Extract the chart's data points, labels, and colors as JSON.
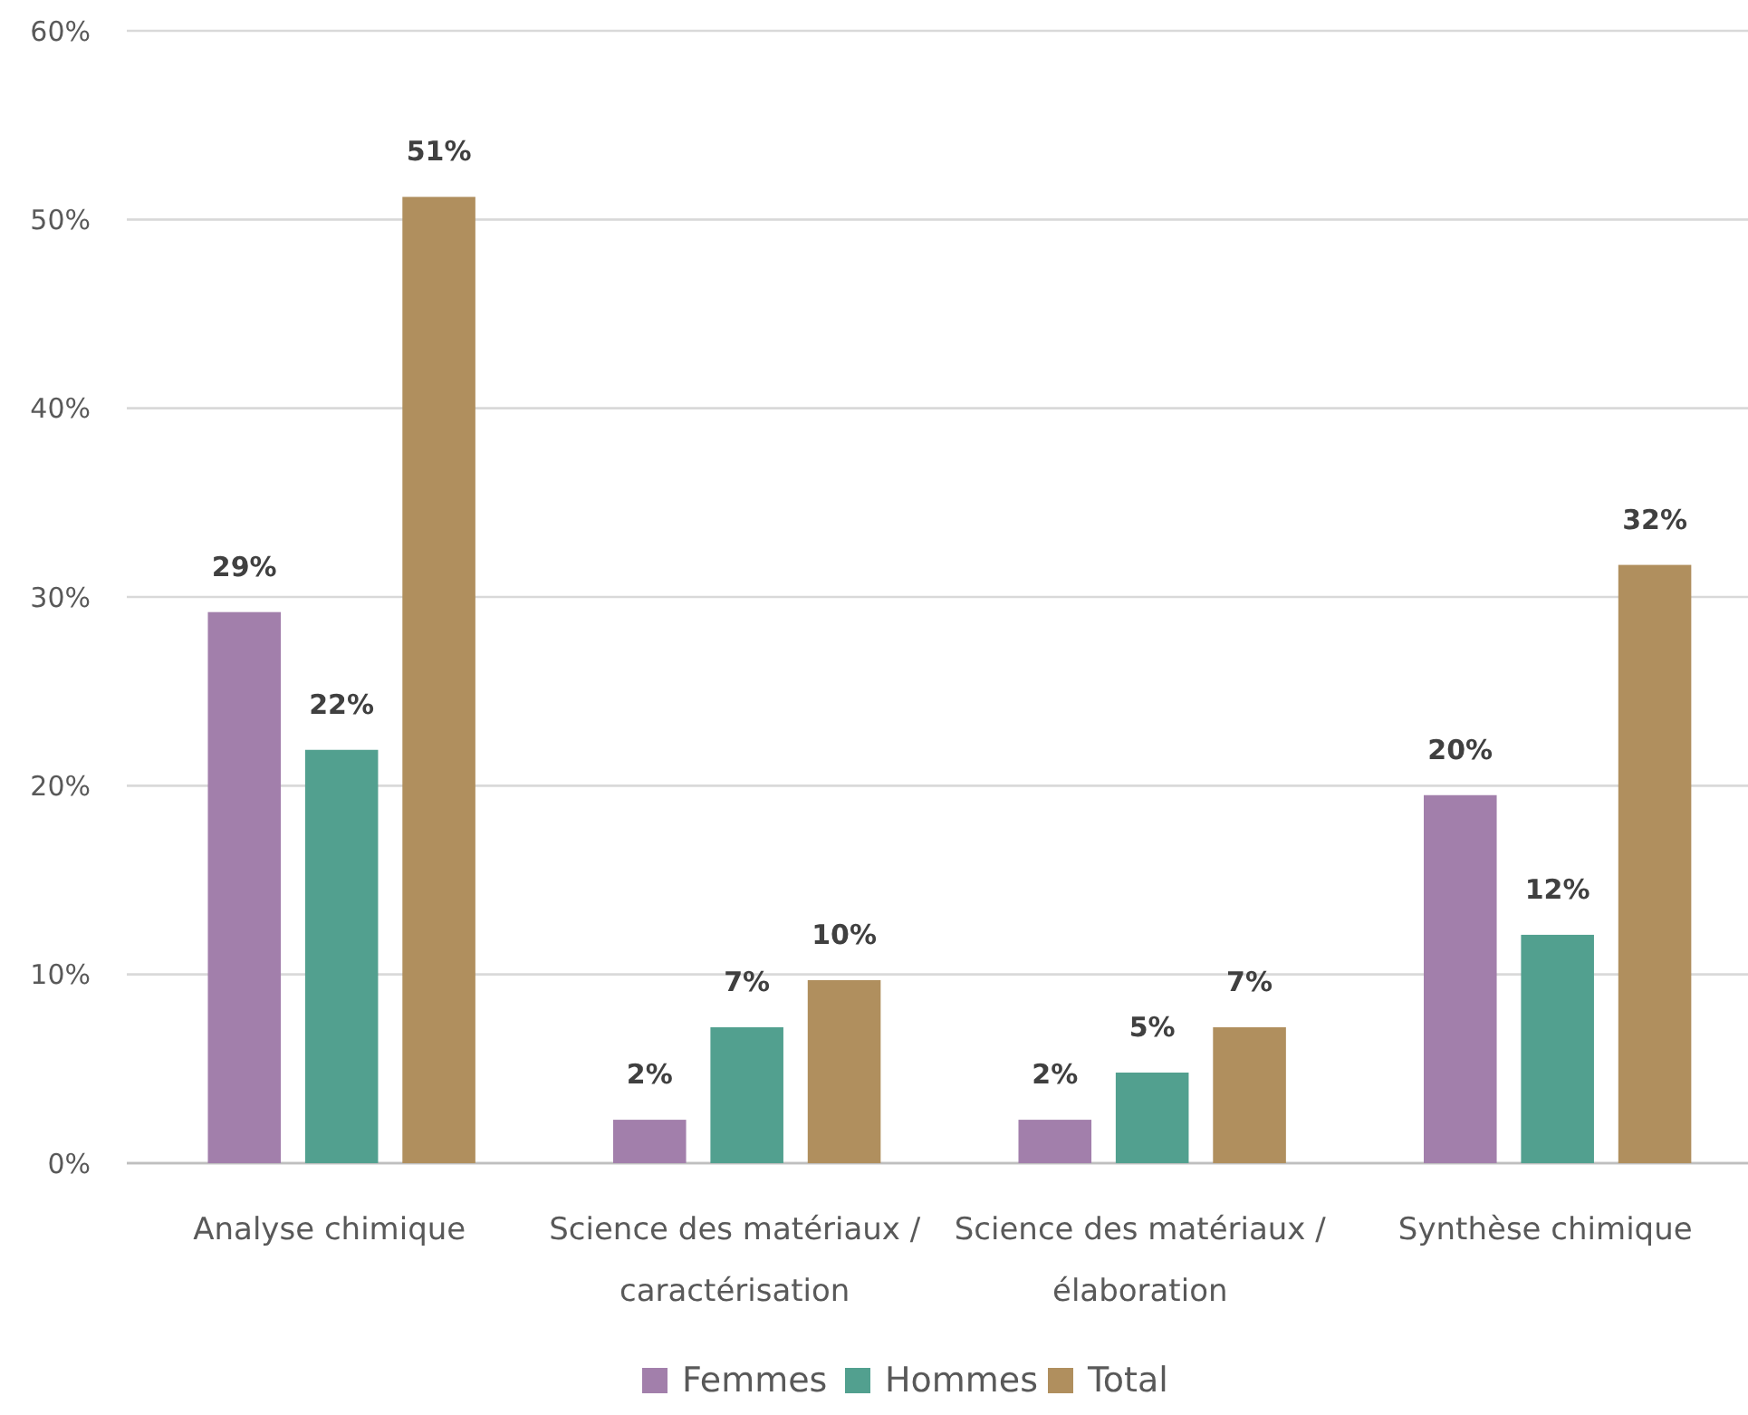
{
  "chart_data": {
    "type": "bar",
    "categories": [
      "Analyse chimique",
      "Science des matériaux / caractérisation",
      "Science des matériaux / élaboration",
      "Synthèse chimique"
    ],
    "series": [
      {
        "name": "Femmes",
        "color": "#a27fab",
        "values": [
          29.2,
          2.3,
          2.3,
          19.5
        ],
        "value_labels": [
          "29%",
          "2%",
          "2%",
          "20%"
        ]
      },
      {
        "name": "Hommes",
        "color": "#52a08f",
        "values": [
          21.9,
          7.2,
          4.8,
          12.1
        ],
        "value_labels": [
          "22%",
          "7%",
          "5%",
          "12%"
        ]
      },
      {
        "name": "Total",
        "color": "#b08f5e",
        "values": [
          51.2,
          9.7,
          7.2,
          31.7
        ],
        "value_labels": [
          "51%",
          "10%",
          "7%",
          "32%"
        ]
      }
    ],
    "ylim": [
      0,
      60
    ],
    "yticks": [
      {
        "value": 0,
        "label": "0%"
      },
      {
        "value": 10,
        "label": "10%"
      },
      {
        "value": 20,
        "label": "20%"
      },
      {
        "value": 30,
        "label": "30%"
      },
      {
        "value": 40,
        "label": "40%"
      },
      {
        "value": 50,
        "label": "50%"
      },
      {
        "value": 60,
        "label": "60%"
      }
    ],
    "grid": "y",
    "legend": "bottom"
  }
}
